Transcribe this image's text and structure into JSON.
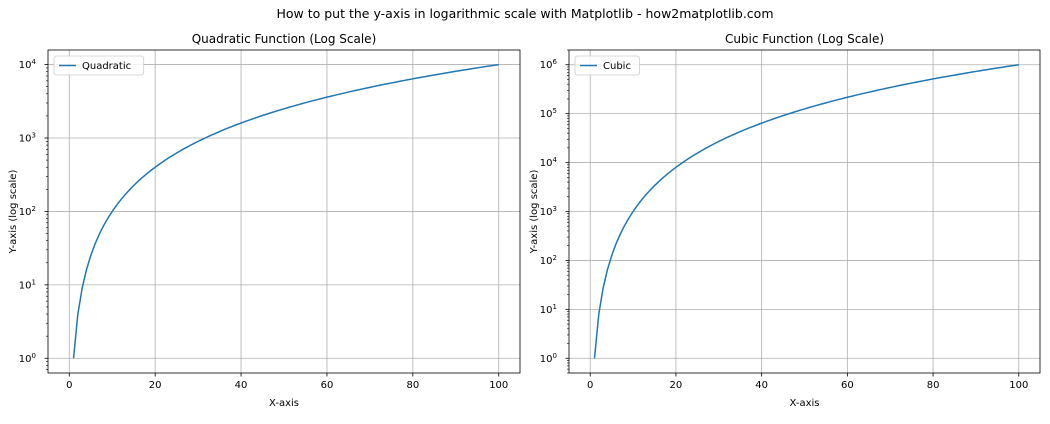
{
  "figure": {
    "suptitle": "How to put the y-axis in logarithmic scale with Matplotlib - how2matplotlib.com"
  },
  "colors": {
    "line": "#1f77b4",
    "grid": "#b0b0b0",
    "axes": "#000000"
  },
  "chart_data": [
    {
      "type": "line",
      "title": "Quadratic Function (Log Scale)",
      "xlabel": "X-axis",
      "ylabel": "Y-axis (log scale)",
      "yscale": "log",
      "xlim": [
        -4.95,
        104.95
      ],
      "ylim": [
        0.63,
        15800
      ],
      "xticks": [
        0,
        20,
        40,
        60,
        80,
        100
      ],
      "yticks": [
        {
          "base": "10",
          "exp": "0",
          "value": 1
        },
        {
          "base": "10",
          "exp": "1",
          "value": 10
        },
        {
          "base": "10",
          "exp": "2",
          "value": 100
        },
        {
          "base": "10",
          "exp": "3",
          "value": 1000
        },
        {
          "base": "10",
          "exp": "4",
          "value": 10000
        }
      ],
      "grid": true,
      "legend": "upper left",
      "series": [
        {
          "name": "Quadratic",
          "function": "x^2",
          "x_range": [
            1,
            100
          ]
        }
      ]
    },
    {
      "type": "line",
      "title": "Cubic Function (Log Scale)",
      "xlabel": "X-axis",
      "ylabel": "Y-axis (log scale)",
      "yscale": "log",
      "xlim": [
        -4.95,
        104.95
      ],
      "ylim": [
        0.5,
        2000000
      ],
      "xticks": [
        0,
        20,
        40,
        60,
        80,
        100
      ],
      "yticks": [
        {
          "base": "10",
          "exp": "0",
          "value": 1
        },
        {
          "base": "10",
          "exp": "1",
          "value": 10
        },
        {
          "base": "10",
          "exp": "2",
          "value": 100
        },
        {
          "base": "10",
          "exp": "3",
          "value": 1000
        },
        {
          "base": "10",
          "exp": "4",
          "value": 10000
        },
        {
          "base": "10",
          "exp": "5",
          "value": 100000
        },
        {
          "base": "10",
          "exp": "6",
          "value": 1000000
        }
      ],
      "grid": true,
      "legend": "upper left",
      "series": [
        {
          "name": "Cubic",
          "function": "x^3",
          "x_range": [
            1,
            100
          ]
        }
      ]
    }
  ]
}
